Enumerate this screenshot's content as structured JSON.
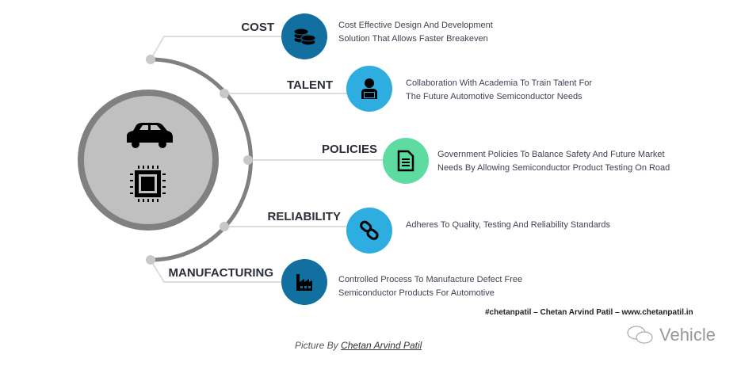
{
  "colors": {
    "dark_blue": "#11709f",
    "light_blue": "#2eaee0",
    "green": "#5ddba0",
    "center_fill": "#c0c0c0",
    "ring": "#808080"
  },
  "center": {
    "icons": [
      "car-icon",
      "chip-icon"
    ]
  },
  "items": [
    {
      "label": "COST",
      "icon": "coins-icon",
      "description": [
        "Cost Effective Design And Development",
        "Solution That Allows Faster Breakeven"
      ]
    },
    {
      "label": "TALENT",
      "icon": "developer-icon",
      "description": [
        "Collaboration With Academia To Train Talent For",
        "The Future Automotive Semiconductor Needs"
      ]
    },
    {
      "label": "POLICIES",
      "icon": "document-icon",
      "description": [
        "Government Policies To Balance Safety And Future Market",
        "Needs By Allowing Semiconductor Product Testing On Road"
      ]
    },
    {
      "label": "RELIABILITY",
      "icon": "link-icon",
      "description": [
        "Adheres To Quality, Testing And Reliability Standards"
      ]
    },
    {
      "label": "MANUFACTURING",
      "icon": "factory-icon",
      "description": [
        "Controlled Process To Manufacture Defect Free",
        "Semiconductor Products For Automotive"
      ]
    }
  ],
  "credit": "#chetanpatil – Chetan Arvind Patil – www.chetanpatil.in",
  "watermark": "Vehicle",
  "caption": {
    "prefix": "Picture By ",
    "author": "Chetan Arvind Patil"
  }
}
